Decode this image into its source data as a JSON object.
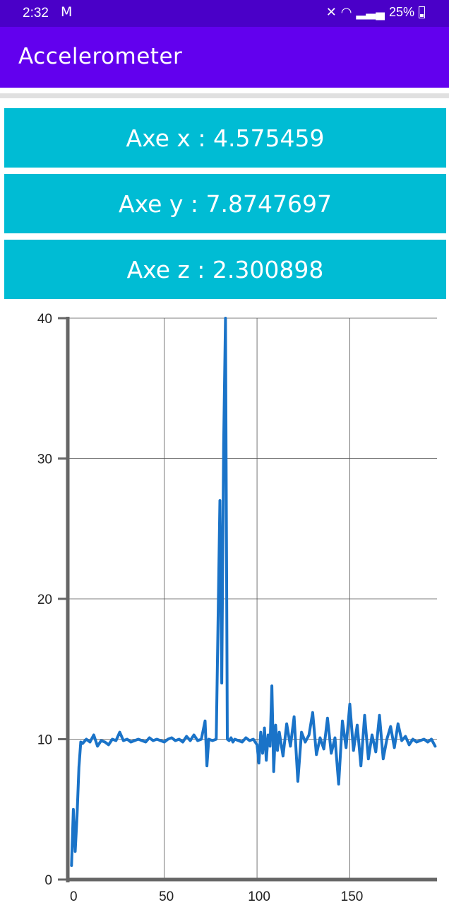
{
  "status": {
    "time": "2:32",
    "mail_icon": "gmail-icon",
    "battery": "25%"
  },
  "app": {
    "title": "Accelerometer"
  },
  "axes": [
    {
      "label": "Axe x : 4.575459"
    },
    {
      "label": "Axe y : 7.8747697"
    },
    {
      "label": "Axe z : 2.300898"
    }
  ],
  "colors": {
    "statusbar": "#4a00c8",
    "appbar": "#6200ee",
    "box": "#00bcd4",
    "line": "#1a73c8"
  },
  "chart_data": {
    "type": "line",
    "title": "",
    "xlabel": "",
    "ylabel": "",
    "xlim": [
      -2,
      197
    ],
    "ylim": [
      0,
      40
    ],
    "x_ticks": [
      0,
      50,
      100,
      150
    ],
    "y_ticks": [
      0,
      10,
      20,
      30,
      40
    ],
    "grid": true,
    "series": [
      {
        "x": [
          0,
          1,
          2,
          3,
          4,
          5,
          6,
          8,
          10,
          12,
          14,
          16,
          18,
          20,
          22,
          24,
          26,
          28,
          30,
          32,
          34,
          36,
          38,
          40,
          42,
          44,
          46,
          48,
          50,
          52,
          54,
          56,
          58,
          60,
          62,
          64,
          66,
          68,
          70,
          72,
          73,
          74,
          76,
          78,
          80,
          81,
          82,
          83,
          84,
          85,
          86,
          87,
          88,
          90,
          92,
          94,
          96,
          98,
          100,
          101,
          102,
          103,
          104,
          105,
          106,
          107,
          108,
          109,
          110,
          111,
          112,
          114,
          116,
          118,
          120,
          122,
          124,
          126,
          128,
          130,
          132,
          134,
          136,
          138,
          140,
          142,
          144,
          146,
          148,
          150,
          152,
          154,
          156,
          158,
          160,
          162,
          164,
          166,
          168,
          170,
          172,
          174,
          176,
          178,
          180,
          182,
          184,
          186,
          188,
          190,
          192,
          194,
          196
        ],
        "y": [
          1.0,
          5.0,
          2.0,
          4.5,
          8.0,
          9.8,
          9.7,
          10.0,
          9.8,
          10.3,
          9.5,
          9.9,
          9.8,
          9.6,
          10.0,
          9.9,
          10.5,
          9.9,
          10.0,
          9.8,
          9.9,
          10.0,
          9.9,
          9.8,
          10.1,
          9.9,
          10.0,
          9.9,
          9.8,
          10.0,
          10.1,
          9.9,
          10.0,
          9.8,
          10.2,
          9.9,
          10.3,
          9.9,
          10.0,
          11.3,
          8.1,
          10.0,
          9.9,
          10.0,
          27.0,
          14.0,
          31.0,
          40.0,
          10.0,
          9.9,
          10.1,
          9.8,
          10.0,
          9.9,
          9.8,
          10.1,
          9.9,
          10.0,
          9.6,
          8.3,
          10.5,
          9.0,
          10.8,
          8.5,
          10.3,
          9.5,
          13.8,
          7.7,
          11.0,
          9.2,
          10.5,
          8.8,
          11.1,
          9.5,
          11.6,
          7.0,
          10.5,
          9.8,
          10.3,
          11.9,
          8.9,
          10.1,
          9.3,
          11.5,
          9.0,
          10.1,
          6.8,
          11.3,
          9.4,
          12.5,
          9.2,
          11.0,
          8.1,
          11.7,
          8.6,
          10.3,
          9.1,
          11.7,
          8.6,
          10.0,
          10.9,
          9.4,
          11.1,
          9.9,
          10.2,
          9.6,
          10.0,
          9.8,
          9.9,
          10.0,
          9.8,
          10.0,
          9.5
        ],
        "color": "#1a73c8"
      }
    ]
  }
}
